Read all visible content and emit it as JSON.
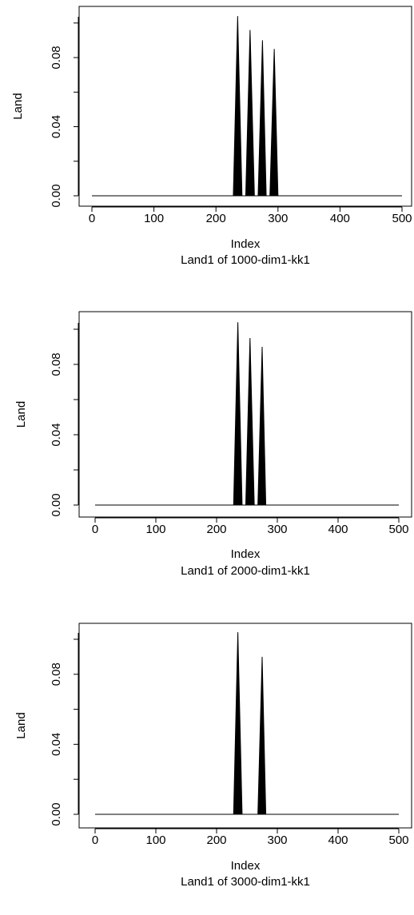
{
  "chart_data": [
    {
      "type": "area",
      "xlabel": "Index",
      "ylabel": "Land",
      "subtitle": "Land1 of 1000-dim1-kk1",
      "xticks": [
        "0",
        "100",
        "200",
        "300",
        "400",
        "500"
      ],
      "yticks": [
        "0.00",
        "0.04",
        "0.08"
      ],
      "xlim": [
        0,
        500
      ],
      "ylim": [
        0,
        0.105
      ],
      "x": [
        0,
        228,
        235,
        242,
        248,
        255,
        262,
        268,
        275,
        281,
        287,
        294,
        300,
        500
      ],
      "y": [
        0,
        0,
        0.104,
        0,
        0,
        0.096,
        0,
        0,
        0.09,
        0,
        0,
        0.085,
        0,
        0
      ]
    },
    {
      "type": "area",
      "xlabel": "Index",
      "ylabel": "Land",
      "subtitle": "Land1 of 2000-dim1-kk1",
      "xticks": [
        "0",
        "100",
        "200",
        "300",
        "400",
        "500"
      ],
      "yticks": [
        "0.00",
        "0.04",
        "0.08"
      ],
      "xlim": [
        0,
        500
      ],
      "ylim": [
        0,
        0.105
      ],
      "x": [
        0,
        228,
        235,
        242,
        248,
        255,
        262,
        268,
        275,
        281,
        500
      ],
      "y": [
        0,
        0,
        0.104,
        0,
        0,
        0.095,
        0,
        0,
        0.09,
        0,
        0
      ]
    },
    {
      "type": "area",
      "xlabel": "Index",
      "ylabel": "Land",
      "subtitle": "Land1 of 3000-dim1-kk1",
      "xticks": [
        "0",
        "100",
        "200",
        "300",
        "400",
        "500"
      ],
      "yticks": [
        "0.00",
        "0.04",
        "0.08"
      ],
      "xlim": [
        0,
        500
      ],
      "ylim": [
        0,
        0.105
      ],
      "x": [
        0,
        228,
        235,
        242,
        268,
        275,
        281,
        500
      ],
      "y": [
        0,
        0,
        0.104,
        0,
        0,
        0.09,
        0,
        0
      ]
    }
  ]
}
